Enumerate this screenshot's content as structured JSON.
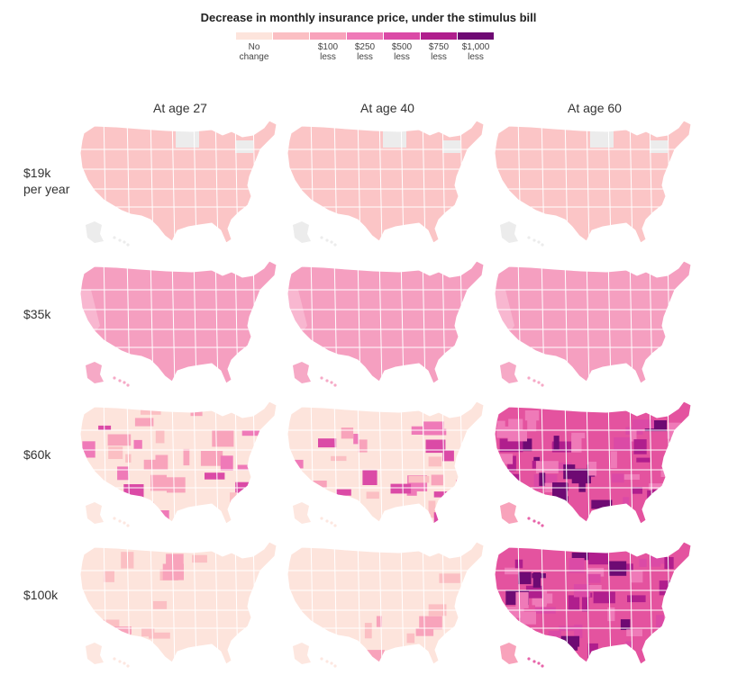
{
  "title": "Decrease in monthly insurance price, under the stimulus bill",
  "legend": {
    "items": [
      {
        "label": "No change",
        "color": "#fde4dc"
      },
      {
        "label": "",
        "color": "#fbbfc3"
      },
      {
        "label": "$100 less",
        "color": "#f8a3bb"
      },
      {
        "label": "$250 less",
        "color": "#ef7ab8"
      },
      {
        "label": "$500 less",
        "color": "#db4aa6"
      },
      {
        "label": "$750 less",
        "color": "#b01e8d"
      },
      {
        "label": "$1,000 less",
        "color": "#6e0a73"
      }
    ]
  },
  "columns": [
    "At age 27",
    "At age 40",
    "At age 60"
  ],
  "rows": [
    {
      "label_lines": [
        "$19k",
        "per year"
      ],
      "base_color": "#fbc5c6",
      "missing_color": "#ececec"
    },
    {
      "label_lines": [
        "$35k"
      ],
      "base_color": "#f59fc0",
      "missing_color": ""
    },
    {
      "label_lines": [
        "$60k"
      ],
      "base_color": "#fde4dc",
      "missing_color": ""
    },
    {
      "label_lines": [
        "$100k"
      ],
      "base_color": "#fde4dc",
      "missing_color": ""
    }
  ],
  "map_colors": {
    "r1": [
      "#fbc5c6",
      "#fbc5c6",
      "#fbc5c6"
    ],
    "r2": [
      "#f59fc0",
      "#f59fc0",
      "#f59fc0"
    ],
    "r3": [
      "#fde4dc",
      "#fde4dc",
      "#e4539f"
    ],
    "r4": [
      "#fde4dc",
      "#fde4dc",
      "#e4539f"
    ]
  }
}
